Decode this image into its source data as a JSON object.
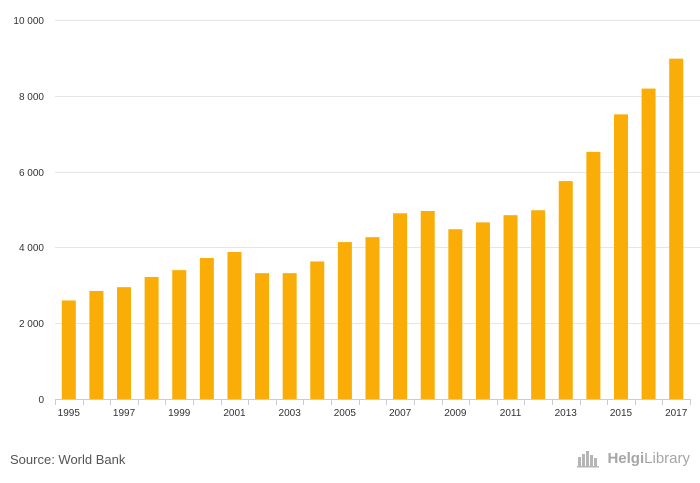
{
  "chart_data": {
    "type": "bar",
    "categories": [
      "1995",
      "1996",
      "1997",
      "1998",
      "1999",
      "2000",
      "2001",
      "2002",
      "2003",
      "2004",
      "2005",
      "2006",
      "2007",
      "2008",
      "2009",
      "2010",
      "2011",
      "2012",
      "2013",
      "2014",
      "2015",
      "2016",
      "2017"
    ],
    "x_tick_labels": [
      "1995",
      "1997",
      "1999",
      "2001",
      "2003",
      "2005",
      "2007",
      "2009",
      "2011",
      "2013",
      "2015",
      "2017"
    ],
    "values": [
      2600,
      2850,
      2950,
      3220,
      3400,
      3720,
      3880,
      3320,
      3320,
      3630,
      4140,
      4270,
      4900,
      4960,
      4480,
      4660,
      4850,
      4980,
      5750,
      6520,
      7510,
      8190,
      8980
    ],
    "y_ticks": [
      0,
      2000,
      4000,
      6000,
      8000,
      10000
    ],
    "y_tick_labels": [
      "0",
      "2 000",
      "4 000",
      "6 000",
      "8 000",
      "10 000"
    ],
    "ylim": [
      0,
      10000
    ],
    "title": "",
    "xlabel": "",
    "ylabel": "",
    "grid": true,
    "bar_color": "#f9ad06"
  },
  "footer": {
    "source": "Source: World Bank",
    "brand_first": "Helgi",
    "brand_second": "Library"
  }
}
